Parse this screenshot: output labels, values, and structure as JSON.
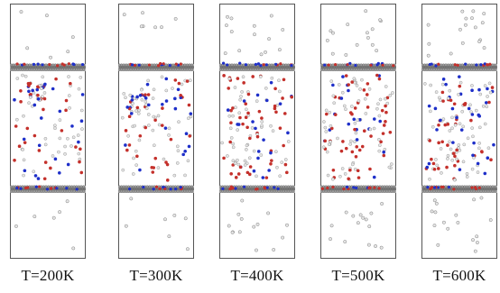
{
  "figure": {
    "panels": [
      {
        "label": "T=200K",
        "temperature_K": 200
      },
      {
        "label": "T=300K",
        "temperature_K": 300
      },
      {
        "label": "T=400K",
        "temperature_K": 400
      },
      {
        "label": "T=500K",
        "temperature_K": 500
      },
      {
        "label": "T=600K",
        "temperature_K": 600
      }
    ],
    "colors": {
      "frame": "#555555",
      "layer": "#8a8a8a",
      "white_atom": "#e6e6e6",
      "red_atom": "#c4302b",
      "blue_atom": "#1e2fc9"
    }
  }
}
